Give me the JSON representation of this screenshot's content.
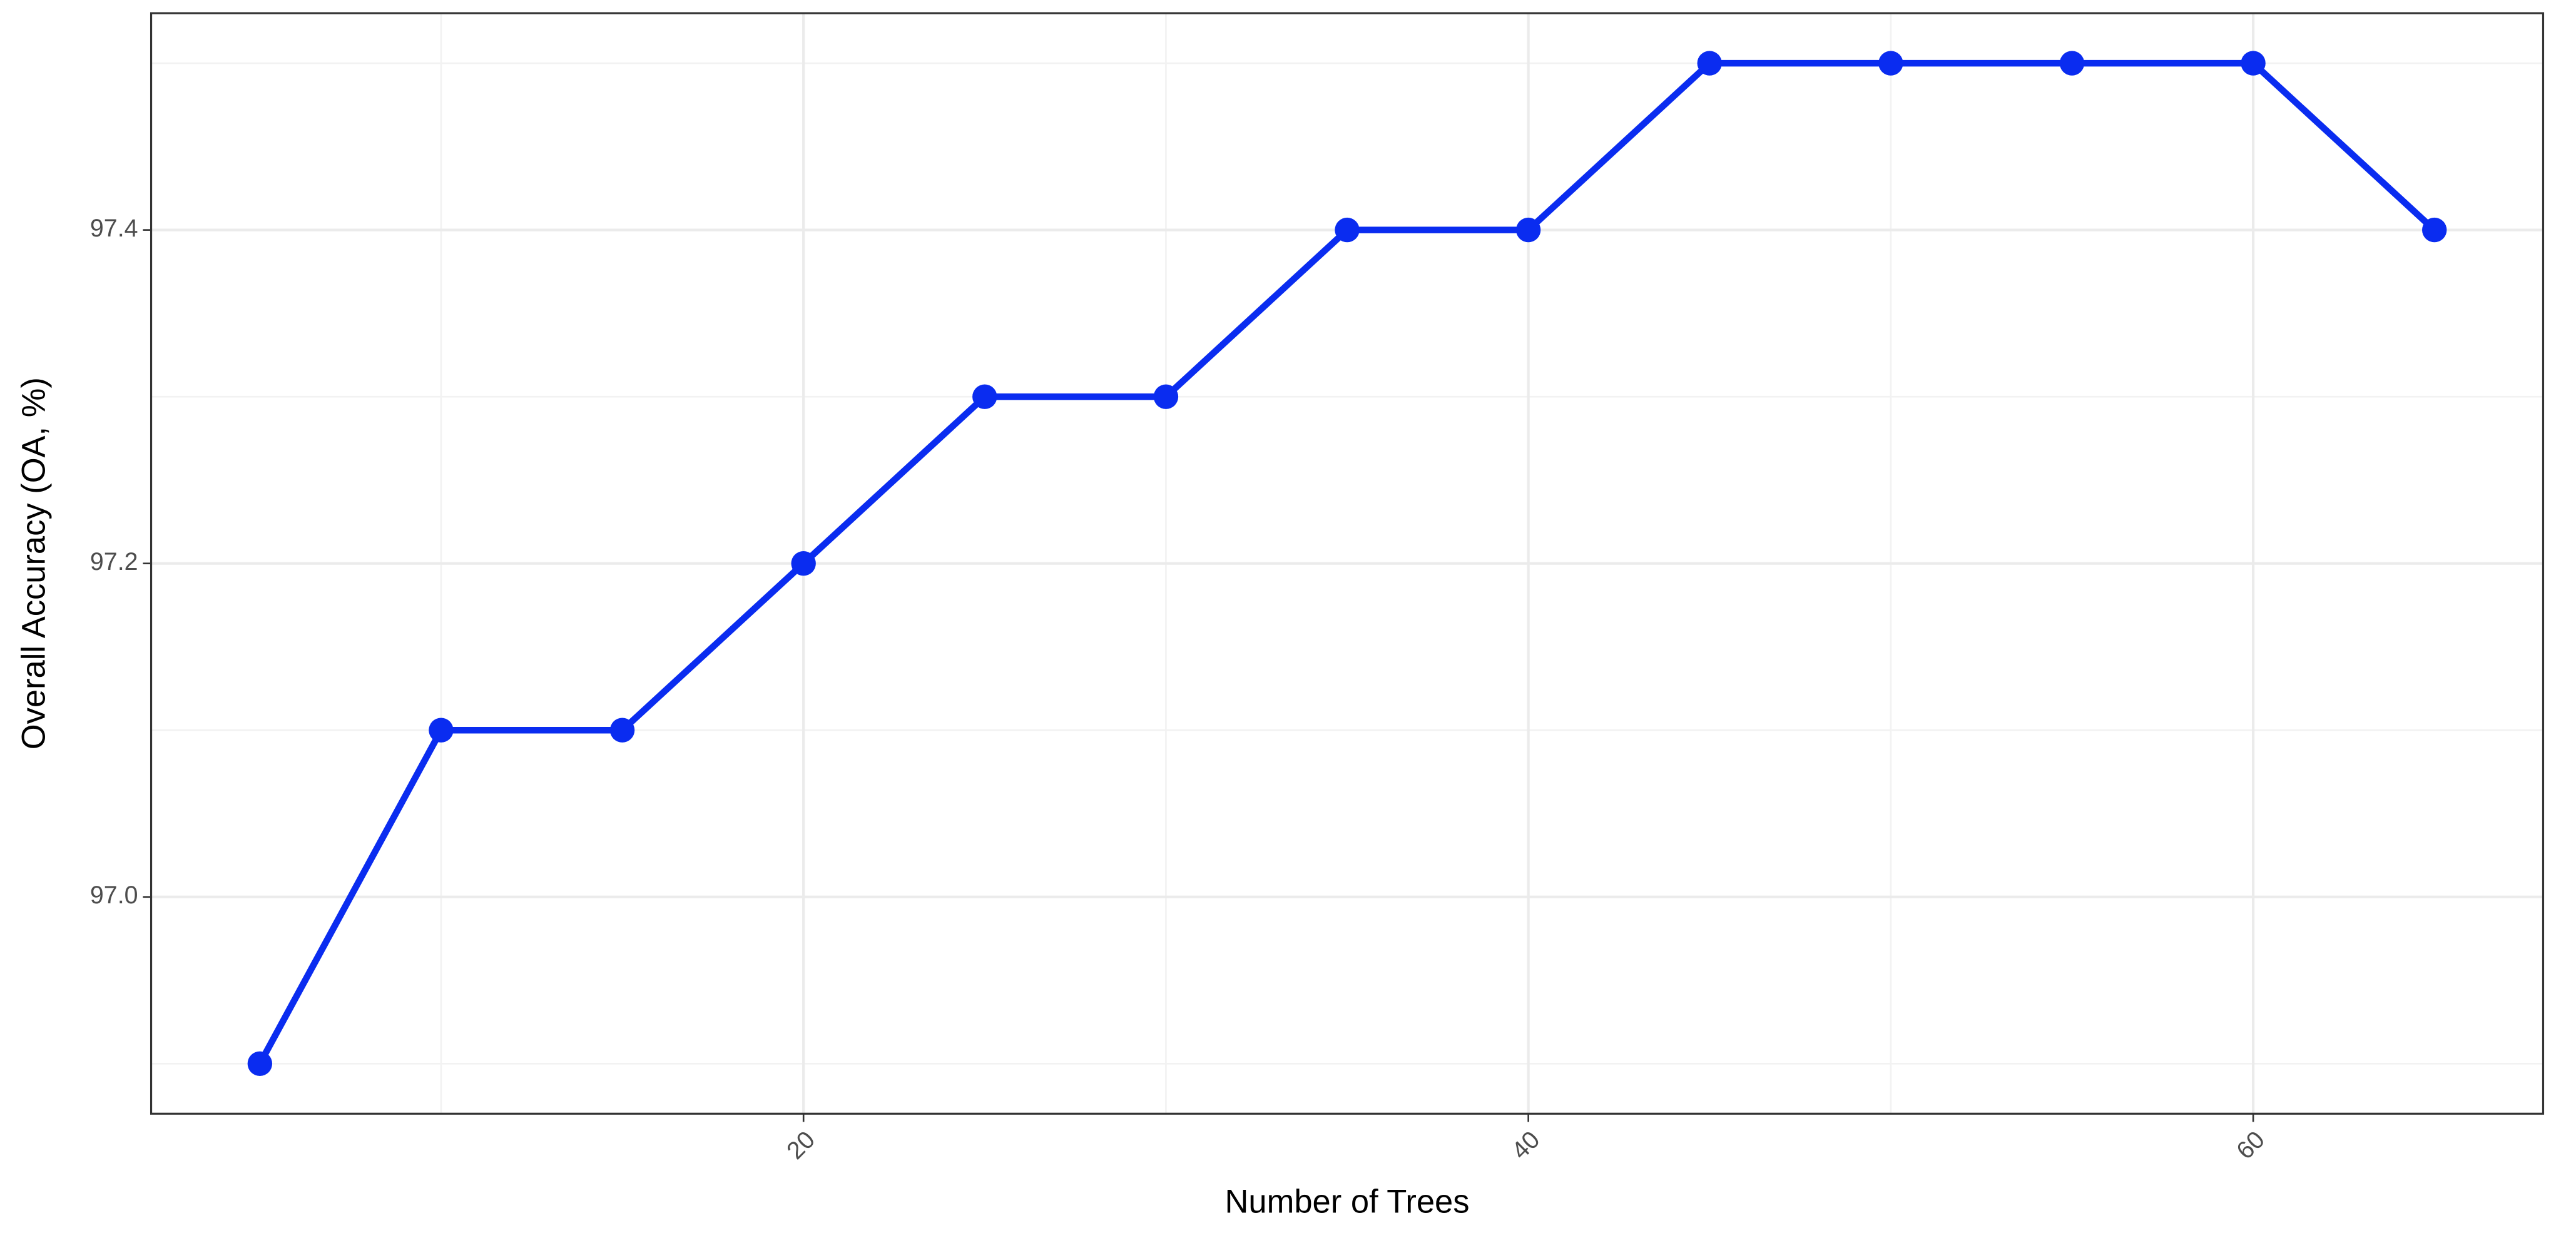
{
  "chart_data": {
    "type": "line",
    "x_label": "Number of Trees",
    "y_label": "Overall Accuracy (OA, %)",
    "x": [
      5,
      10,
      15,
      20,
      25,
      30,
      35,
      40,
      45,
      50,
      55,
      60,
      65
    ],
    "series": [
      {
        "color": "#0a2cf0",
        "values": [
          96.9,
          97.1,
          97.1,
          97.2,
          97.3,
          97.3,
          97.4,
          97.4,
          97.5,
          97.5,
          97.5,
          97.5,
          97.4
        ]
      }
    ],
    "xlim": [
      2,
      68
    ],
    "ylim": [
      96.87,
      97.53
    ],
    "xticks": [
      20,
      40,
      60
    ],
    "yticks": [
      {
        "value": 97,
        "label": "97.0"
      },
      97.2,
      97.4
    ],
    "x_minor_ticks": [
      10,
      30,
      50
    ],
    "y_minor_ticks": [
      96.9,
      97.1,
      97.3,
      97.5
    ],
    "grid": true
  }
}
